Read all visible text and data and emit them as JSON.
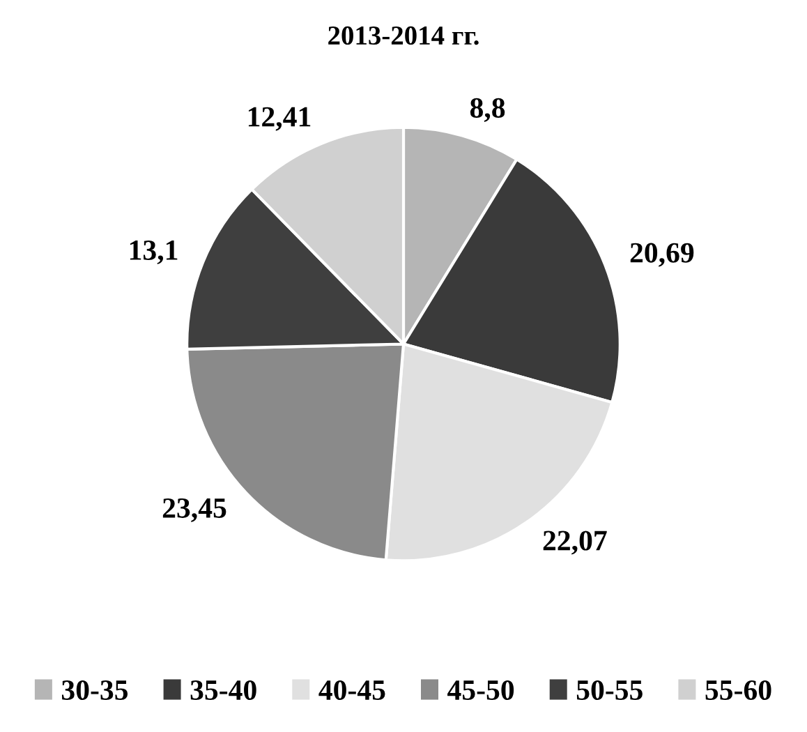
{
  "chart_data": {
    "type": "pie",
    "title": "2013-2014 гг.",
    "categories": [
      "30-35",
      "35-40",
      "40-45",
      "45-50",
      "50-55",
      "55-60"
    ],
    "values": [
      8.8,
      20.69,
      22.07,
      23.45,
      13.1,
      12.41
    ],
    "value_labels": [
      "8,8",
      "20,69",
      "22,07",
      "23,45",
      "13,1",
      "12,41"
    ],
    "colors": [
      "#b5b5b5",
      "#3a3a3a",
      "#e0e0e0",
      "#8a8a8a",
      "#3f3f3f",
      "#d0d0d0"
    ],
    "legend": "bottom"
  }
}
